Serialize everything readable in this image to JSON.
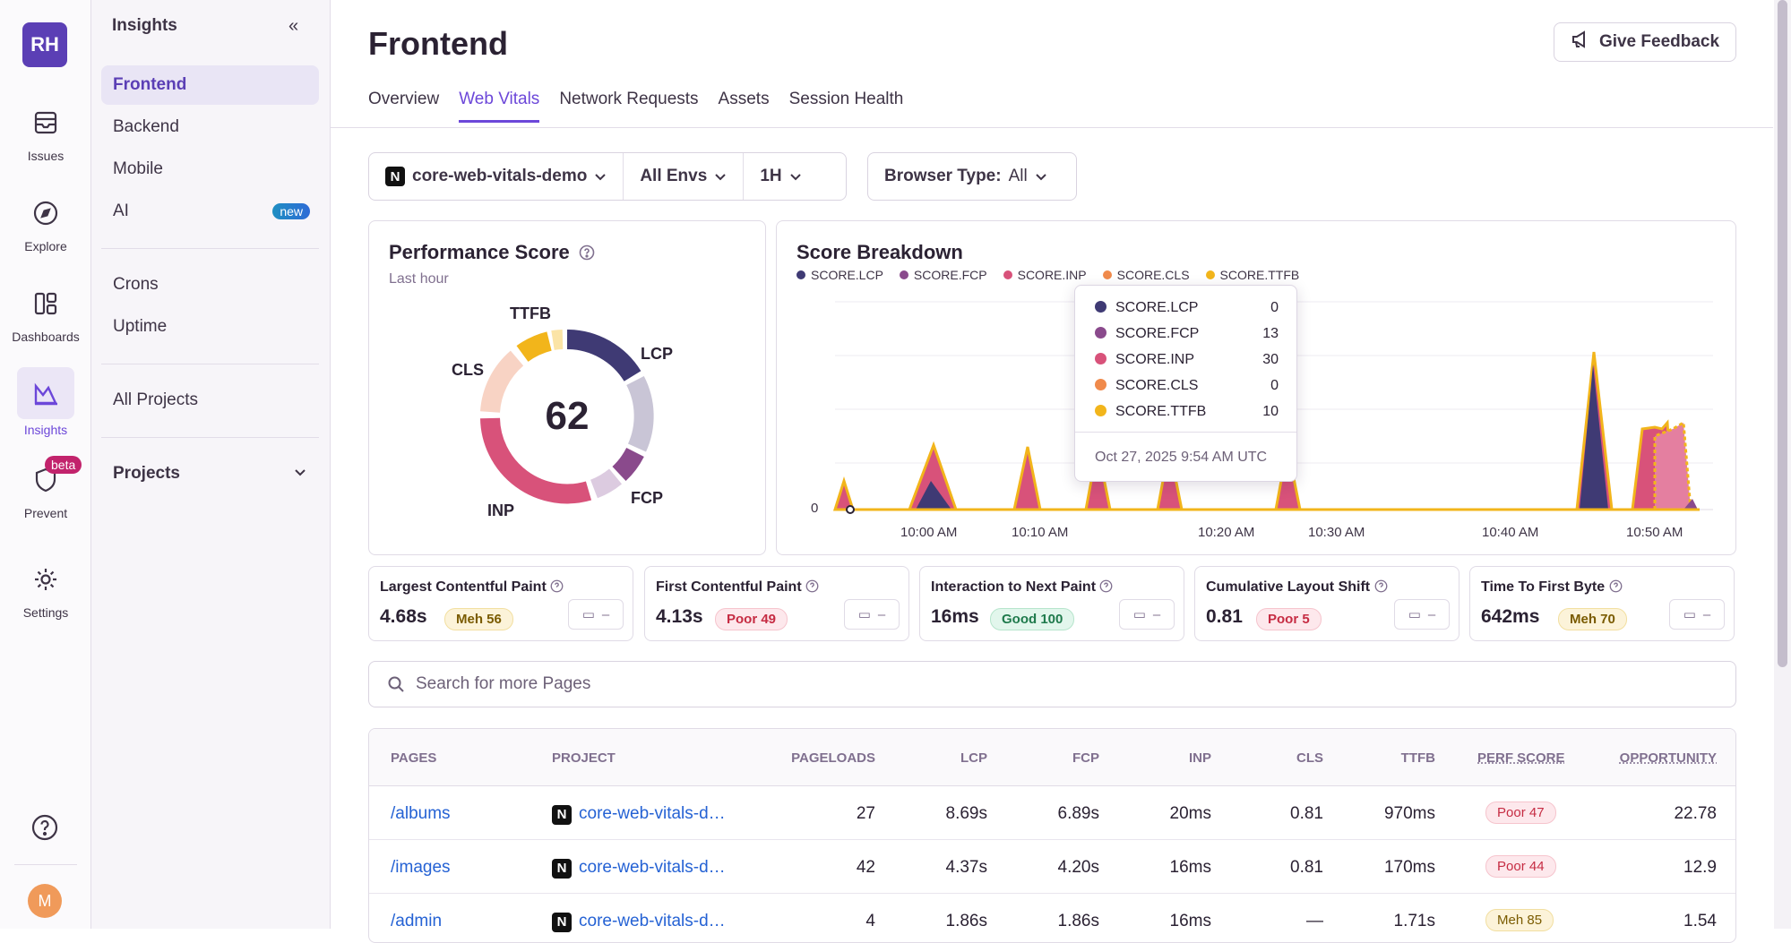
{
  "org": {
    "initials": "RH"
  },
  "rail": {
    "items": [
      {
        "label": "Issues",
        "icon": "issues-icon"
      },
      {
        "label": "Explore",
        "icon": "compass-icon"
      },
      {
        "label": "Dashboards",
        "icon": "dashboard-icon"
      },
      {
        "label": "Insights",
        "icon": "insights-icon"
      },
      {
        "label": "Prevent",
        "icon": "shield-icon",
        "badge": "beta"
      },
      {
        "label": "Settings",
        "icon": "gear-icon"
      }
    ],
    "user_initial": "M"
  },
  "nav": {
    "heading": "Insights",
    "items": [
      "Frontend",
      "Backend",
      "Mobile",
      "AI",
      "Crons",
      "Uptime",
      "All Projects",
      "Projects"
    ],
    "ai_badge": "new"
  },
  "page": {
    "title": "Frontend",
    "feedback_label": "Give Feedback",
    "tabs": [
      "Overview",
      "Web Vitals",
      "Network Requests",
      "Assets",
      "Session Health"
    ],
    "active_tab": "Web Vitals"
  },
  "filters": {
    "project": "core-web-vitals-demo",
    "envs": "All Envs",
    "period": "1H",
    "browser_label": "Browser Type:",
    "browser_value": "All"
  },
  "performance": {
    "title": "Performance Score",
    "subtitle": "Last hour",
    "score": "62",
    "labels": [
      "TTFB",
      "LCP",
      "CLS",
      "INP",
      "FCP"
    ]
  },
  "breakdown": {
    "title": "Score Breakdown",
    "legend": [
      "SCORE.LCP",
      "SCORE.FCP",
      "SCORE.INP",
      "SCORE.CLS",
      "SCORE.TTFB"
    ],
    "colors": [
      "#3f3a74",
      "#8a4a8c",
      "#d8527a",
      "#f08a4b",
      "#f2b51b"
    ],
    "tooltip": {
      "rows": [
        {
          "label": "SCORE.LCP",
          "value": "0"
        },
        {
          "label": "SCORE.FCP",
          "value": "13"
        },
        {
          "label": "SCORE.INP",
          "value": "30"
        },
        {
          "label": "SCORE.CLS",
          "value": "0"
        },
        {
          "label": "SCORE.TTFB",
          "value": "10"
        }
      ],
      "time": "Oct 27, 2025 9:54 AM UTC"
    },
    "y_zero": "0",
    "x_ticks": [
      "10:00 AM",
      "10:10 AM",
      "10:20 AM",
      "10:30 AM",
      "10:40 AM",
      "10:50 AM"
    ]
  },
  "chart_data": {
    "type": "area",
    "title": "Score Breakdown",
    "series": [
      {
        "name": "SCORE.LCP",
        "color": "#3f3a74"
      },
      {
        "name": "SCORE.FCP",
        "color": "#8a4a8c"
      },
      {
        "name": "SCORE.INP",
        "color": "#d8527a"
      },
      {
        "name": "SCORE.CLS",
        "color": "#f08a4b"
      },
      {
        "name": "SCORE.TTFB",
        "color": "#f2b51b"
      }
    ],
    "x_ticks": [
      "10:00 AM",
      "10:10 AM",
      "10:20 AM",
      "10:30 AM",
      "10:40 AM",
      "10:50 AM"
    ],
    "hover_point": {
      "time": "Oct 27, 2025 9:54 AM UTC",
      "SCORE.LCP": 0,
      "SCORE.FCP": 13,
      "SCORE.INP": 30,
      "SCORE.CLS": 0,
      "SCORE.TTFB": 10
    }
  },
  "vitals": [
    {
      "name": "Largest Contentful Paint",
      "value": "4.68s",
      "badge": "Meh 56",
      "status": "meh"
    },
    {
      "name": "First Contentful Paint",
      "value": "4.13s",
      "badge": "Poor 49",
      "status": "poor"
    },
    {
      "name": "Interaction to Next Paint",
      "value": "16ms",
      "badge": "Good 100",
      "status": "good"
    },
    {
      "name": "Cumulative Layout Shift",
      "value": "0.81",
      "badge": "Poor 5",
      "status": "poor"
    },
    {
      "name": "Time To First Byte",
      "value": "642ms",
      "badge": "Meh 70",
      "status": "meh"
    }
  ],
  "vital_btn": "–",
  "search": {
    "placeholder": "Search for more Pages"
  },
  "table": {
    "headers": [
      "PAGES",
      "PROJECT",
      "PAGELOADS",
      "LCP",
      "FCP",
      "INP",
      "CLS",
      "TTFB",
      "PERF SCORE",
      "OPPORTUNITY"
    ],
    "rows": [
      {
        "page": "/albums",
        "project": "core-web-vitals-d…",
        "pageloads": "27",
        "lcp": "8.69s",
        "fcp": "6.89s",
        "inp": "20ms",
        "cls": "0.81",
        "ttfb": "970ms",
        "score": "Poor 47",
        "status": "poor",
        "opp": "22.78"
      },
      {
        "page": "/images",
        "project": "core-web-vitals-d…",
        "pageloads": "42",
        "lcp": "4.37s",
        "fcp": "4.20s",
        "inp": "16ms",
        "cls": "0.81",
        "ttfb": "170ms",
        "score": "Poor 44",
        "status": "poor",
        "opp": "12.9"
      },
      {
        "page": "/admin",
        "project": "core-web-vitals-d…",
        "pageloads": "4",
        "lcp": "1.86s",
        "fcp": "1.86s",
        "inp": "16ms",
        "cls": "—",
        "ttfb": "1.71s",
        "score": "Meh 85",
        "status": "meh",
        "opp": "1.54"
      }
    ]
  }
}
